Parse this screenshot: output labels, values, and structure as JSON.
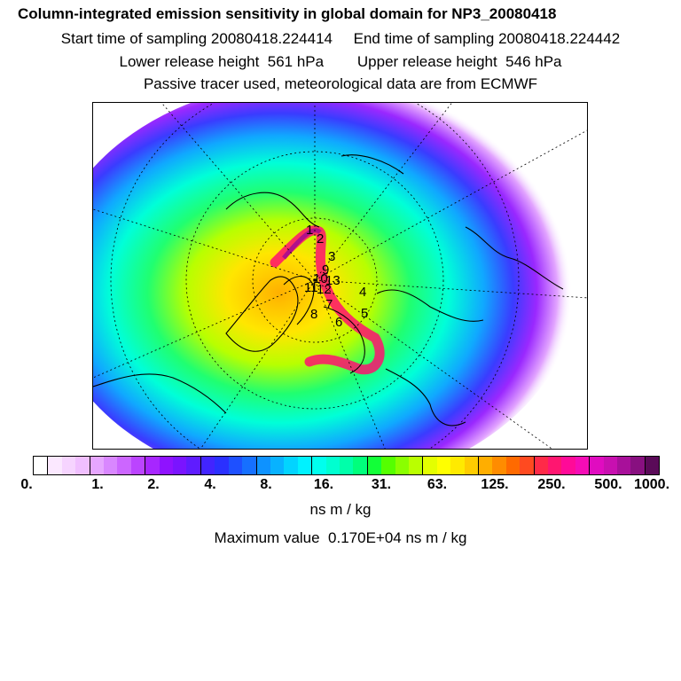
{
  "header": {
    "title": "Column-integrated emission sensitivity in global domain for NP3_20080418",
    "sampling_line": "Start time of sampling 20080418.224414     End time of sampling 20080418.224442",
    "height_line": "Lower release height  561 hPa        Upper release height  546 hPa",
    "tracer_line": "Passive tracer used, meteorological data are from ECMWF"
  },
  "colorbar": {
    "colors": [
      "#ffffff",
      "#fbe8ff",
      "#f6d4ff",
      "#f0bfff",
      "#e6a6ff",
      "#d987ff",
      "#cc66ff",
      "#bb44ff",
      "#a726ff",
      "#8f12ff",
      "#7a14ff",
      "#5f1cff",
      "#4224ff",
      "#2a30ff",
      "#1e50ff",
      "#1670ff",
      "#0e92ff",
      "#08b2ff",
      "#02d4ff",
      "#00f2ff",
      "#00ffee",
      "#00ffd0",
      "#00ffaa",
      "#00ff7c",
      "#12ff38",
      "#55ff00",
      "#8aff00",
      "#baff00",
      "#e4ff00",
      "#ffff00",
      "#ffea00",
      "#ffcc00",
      "#ffae00",
      "#ff8c00",
      "#ff6a00",
      "#ff4a20",
      "#ff2a48",
      "#ff1670",
      "#ff0a98",
      "#f50cb6",
      "#e00cc0",
      "#c810b0",
      "#a8109a",
      "#881080",
      "#5a0a58"
    ],
    "tick_labels": [
      "0.",
      "1.",
      "2.",
      "4.",
      "8.",
      "16.",
      "31.",
      "63.",
      "125.",
      "250.",
      "500.",
      "1000."
    ],
    "units": "ns m / kg"
  },
  "footer": {
    "max_value": "Maximum value  0.170E+04 ns m / kg"
  },
  "map": {
    "trajectory_labels": [
      "1",
      "2",
      "3",
      "4",
      "5",
      "6",
      "7",
      "8",
      "9",
      "10",
      "11",
      "12",
      "13"
    ]
  }
}
